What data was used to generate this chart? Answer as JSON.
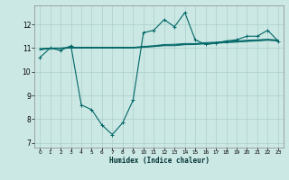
{
  "bg_color": "#cce8e4",
  "grid_color": "#aacfcb",
  "line_color": "#006666",
  "xlabel": "Humidex (Indice chaleur)",
  "xlim": [
    -0.5,
    23.5
  ],
  "ylim": [
    6.8,
    12.8
  ],
  "yticks": [
    7,
    8,
    9,
    10,
    11,
    12
  ],
  "xticks": [
    0,
    1,
    2,
    3,
    4,
    5,
    6,
    7,
    8,
    9,
    10,
    11,
    12,
    13,
    14,
    15,
    16,
    17,
    18,
    19,
    20,
    21,
    22,
    23
  ],
  "series1": {
    "x": [
      0,
      1,
      2,
      3,
      4,
      5,
      6,
      7,
      8,
      9,
      10,
      11,
      12,
      13,
      14,
      15,
      16,
      17,
      18,
      19,
      20,
      21,
      22,
      23
    ],
    "y": [
      10.6,
      11.0,
      10.9,
      11.1,
      8.6,
      8.4,
      7.75,
      7.35,
      7.85,
      8.8,
      11.65,
      11.75,
      12.2,
      11.9,
      12.5,
      11.35,
      11.15,
      11.2,
      11.3,
      11.35,
      11.5,
      11.5,
      11.75,
      11.3
    ]
  },
  "series2": {
    "x": [
      0,
      1,
      2,
      3,
      4,
      5,
      6,
      7,
      8,
      9,
      10,
      11,
      12,
      13,
      14,
      15,
      16,
      17,
      18,
      19,
      20,
      21,
      22,
      23
    ],
    "y": [
      10.95,
      11.0,
      11.0,
      11.02,
      11.02,
      11.02,
      11.02,
      11.02,
      11.02,
      11.02,
      11.05,
      11.08,
      11.12,
      11.13,
      11.16,
      11.17,
      11.2,
      11.22,
      11.25,
      11.27,
      11.3,
      11.32,
      11.35,
      11.32
    ]
  },
  "series3": {
    "x": [
      0,
      1,
      2,
      3,
      4,
      5,
      6,
      7,
      8,
      9,
      10,
      11,
      12,
      13,
      14,
      15,
      16,
      17,
      18,
      19,
      20,
      21,
      22,
      23
    ],
    "y": [
      10.98,
      11.0,
      11.0,
      11.03,
      11.03,
      11.03,
      11.03,
      11.03,
      11.03,
      11.03,
      11.07,
      11.1,
      11.15,
      11.16,
      11.19,
      11.19,
      11.23,
      11.25,
      11.28,
      11.3,
      11.33,
      11.35,
      11.37,
      11.34
    ]
  },
  "series4": {
    "x": [
      0,
      1,
      2,
      3,
      4,
      5,
      6,
      7,
      8,
      9,
      10,
      11,
      12,
      13,
      14,
      15,
      16,
      17,
      18,
      19,
      20,
      21,
      22,
      23
    ],
    "y": [
      10.92,
      10.98,
      10.98,
      11.0,
      11.0,
      11.0,
      11.0,
      11.0,
      11.0,
      11.0,
      11.03,
      11.06,
      11.1,
      11.1,
      11.14,
      11.15,
      11.18,
      11.2,
      11.23,
      11.25,
      11.28,
      11.3,
      11.33,
      11.3
    ]
  }
}
